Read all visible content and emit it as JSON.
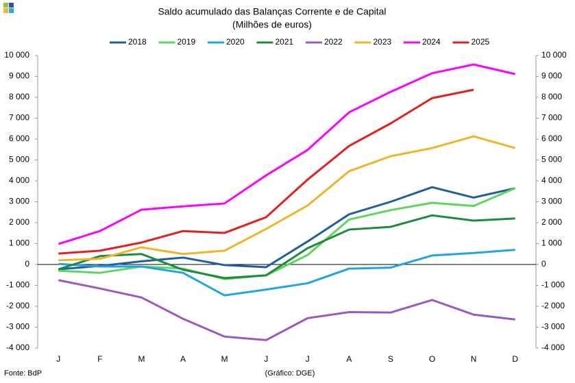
{
  "chart_data": {
    "type": "line",
    "title": "Saldo acumulado  das Balanças Corrente e de Capital",
    "subtitle": "(Milhões de euros)",
    "source": "Fonte: BdP",
    "credit": "(Gráfico: DGE)",
    "categories": [
      "J",
      "F",
      "M",
      "A",
      "M",
      "J",
      "J",
      "A",
      "S",
      "O",
      "N",
      "D"
    ],
    "series": [
      {
        "name": "2018",
        "color": "#1f5fa0",
        "values": [
          -230,
          -70,
          150,
          330,
          -30,
          -130,
          1100,
          2400,
          3000,
          3700,
          3200,
          3650
        ]
      },
      {
        "name": "2019",
        "color": "#5cd65c",
        "values": [
          -300,
          -400,
          -100,
          -200,
          -700,
          -520,
          450,
          2150,
          2600,
          2950,
          2800,
          3650
        ]
      },
      {
        "name": "2020",
        "color": "#1fa6e0",
        "values": [
          30,
          -100,
          -100,
          -400,
          -1480,
          -1200,
          -900,
          -200,
          -150,
          430,
          550,
          700
        ]
      },
      {
        "name": "2021",
        "color": "#1e8a3c",
        "values": [
          -230,
          400,
          500,
          -250,
          -650,
          -520,
          780,
          1670,
          1800,
          2350,
          2100,
          2200
        ]
      },
      {
        "name": "2022",
        "color": "#9b59c0",
        "values": [
          -750,
          -1150,
          -1580,
          -2600,
          -3450,
          -3620,
          -2570,
          -2280,
          -2300,
          -1700,
          -2400,
          -2630
        ]
      },
      {
        "name": "2023",
        "color": "#f0b428",
        "values": [
          200,
          270,
          820,
          500,
          660,
          1700,
          2820,
          4460,
          5180,
          5570,
          6130,
          5570
        ]
      },
      {
        "name": "2024",
        "color": "#ff00ff",
        "values": [
          980,
          1600,
          2620,
          2780,
          2920,
          4260,
          5480,
          7280,
          8260,
          9150,
          9570,
          9110
        ]
      },
      {
        "name": "2025",
        "color": "#e61e1e",
        "values": [
          520,
          660,
          1050,
          1600,
          1510,
          2260,
          4060,
          5670,
          6750,
          7960,
          8360,
          null
        ]
      }
    ],
    "ylim": [
      -4000,
      10000
    ],
    "yticks": [
      {
        "value": -4000,
        "label": "-4 000"
      },
      {
        "value": -3000,
        "label": "-3 000"
      },
      {
        "value": -2000,
        "label": "-2 000"
      },
      {
        "value": -1000,
        "label": "-1 000"
      },
      0,
      {
        "value": 1000,
        "label": "1 000"
      },
      {
        "value": 2000,
        "label": "2 000"
      },
      {
        "value": 3000,
        "label": "3 000"
      },
      {
        "value": 4000,
        "label": "4 000"
      },
      {
        "value": 5000,
        "label": "5 000"
      },
      {
        "value": 6000,
        "label": "6 000"
      },
      {
        "value": 7000,
        "label": "7 000"
      },
      {
        "value": 8000,
        "label": "8 000"
      },
      {
        "value": 9000,
        "label": "9 000"
      },
      {
        "value": 10000,
        "label": "10 000"
      }
    ],
    "y2lim": [
      -4000,
      10000
    ],
    "y2ticks": [
      {
        "value": -4000,
        "label": "-4 000"
      },
      {
        "value": -3000,
        "label": "-3 000"
      },
      {
        "value": -2000,
        "label": "-2 000"
      },
      {
        "value": -1000,
        "label": "-1 000"
      },
      0,
      {
        "value": 1000,
        "label": "1 000"
      },
      {
        "value": 2000,
        "label": "2 000"
      },
      {
        "value": 3000,
        "label": "3 000"
      },
      {
        "value": 4000,
        "label": "4 000"
      },
      {
        "value": 5000,
        "label": "5 000"
      },
      {
        "value": 6000,
        "label": "6 000"
      },
      {
        "value": 7000,
        "label": "7 000"
      },
      {
        "value": 8000,
        "label": "8 000"
      },
      {
        "value": 9000,
        "label": "9 000"
      },
      {
        "value": 10000,
        "label": "10 000"
      }
    ],
    "legend": "top"
  }
}
